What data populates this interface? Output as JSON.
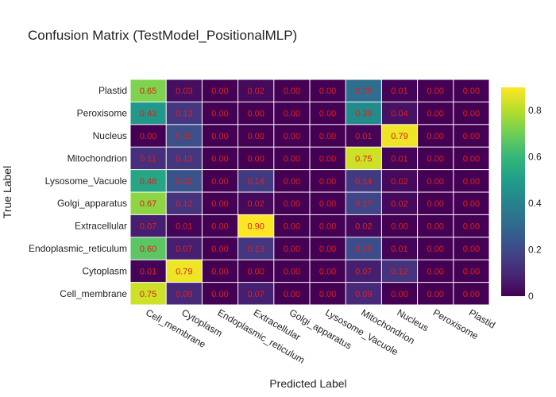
{
  "chart_data": {
    "type": "heatmap",
    "title": "Confusion Matrix (TestModel_PositionalMLP)",
    "xlabel": "Predicted Label",
    "ylabel": "True Label",
    "x_categories": [
      "Cell_membrane",
      "Cytoplasm",
      "Endoplasmic_reticulum",
      "Extracellular",
      "Golgi_apparatus",
      "Lysosome_Vacuole",
      "Mitochondrion",
      "Nucleus",
      "Peroxisome",
      "Plastid"
    ],
    "y_categories": [
      "Plastid",
      "Peroxisome",
      "Nucleus",
      "Mitochondrion",
      "Lysosome_Vacuole",
      "Golgi_apparatus",
      "Extracellular",
      "Endoplasmic_reticulum",
      "Cytoplasm",
      "Cell_membrane"
    ],
    "values": [
      [
        0.65,
        0.03,
        0.0,
        0.02,
        0.0,
        0.0,
        0.29,
        0.01,
        0.0,
        0.0
      ],
      [
        0.43,
        0.13,
        0.0,
        0.0,
        0.0,
        0.0,
        0.39,
        0.04,
        0.0,
        0.0
      ],
      [
        0.0,
        0.2,
        0.0,
        0.0,
        0.0,
        0.0,
        0.01,
        0.79,
        0.0,
        0.0
      ],
      [
        0.11,
        0.13,
        0.0,
        0.0,
        0.0,
        0.0,
        0.75,
        0.01,
        0.0,
        0.0
      ],
      [
        0.48,
        0.21,
        0.0,
        0.14,
        0.0,
        0.0,
        0.14,
        0.02,
        0.0,
        0.0
      ],
      [
        0.67,
        0.12,
        0.0,
        0.02,
        0.0,
        0.0,
        0.17,
        0.02,
        0.0,
        0.0
      ],
      [
        0.07,
        0.01,
        0.0,
        0.9,
        0.0,
        0.0,
        0.02,
        0.0,
        0.0,
        0.0
      ],
      [
        0.6,
        0.07,
        0.0,
        0.13,
        0.0,
        0.0,
        0.19,
        0.01,
        0.0,
        0.0
      ],
      [
        0.01,
        0.79,
        0.0,
        0.0,
        0.0,
        0.0,
        0.07,
        0.12,
        0.0,
        0.0
      ],
      [
        0.75,
        0.09,
        0.0,
        0.07,
        0.0,
        0.0,
        0.09,
        0.0,
        0.0,
        0.0
      ]
    ],
    "colorscale": "viridis",
    "zlim": [
      0,
      0.9
    ],
    "colorbar_ticks": [
      0,
      0.2,
      0.4,
      0.6,
      0.8
    ],
    "annotation_color": "#e0201b",
    "grid": false,
    "legend": "colorbar-right"
  }
}
